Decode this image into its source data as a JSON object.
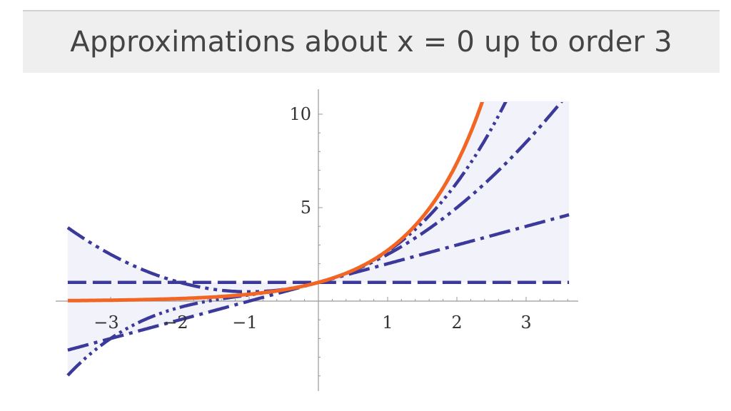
{
  "header": {
    "title": "Approximations about x = 0 up to order 3"
  },
  "chart_data": {
    "type": "line",
    "title": "Approximations about x = 0 up to order 3",
    "xlabel": "",
    "ylabel": "",
    "xlim": [
      -3.7,
      3.7
    ],
    "ylim": [
      -4.5,
      10.5
    ],
    "x_ticks": [
      {
        "value": -3,
        "label": "−3"
      },
      {
        "value": -2,
        "label": "−2"
      },
      {
        "value": -1,
        "label": "−1"
      },
      {
        "value": 1,
        "label": "1"
      },
      {
        "value": 2,
        "label": "2"
      },
      {
        "value": 3,
        "label": "3"
      }
    ],
    "y_ticks": [
      {
        "value": 5,
        "label": "5"
      },
      {
        "value": 10,
        "label": "10"
      }
    ],
    "grid": false,
    "series": [
      {
        "order": 0,
        "coefficients": [
          1
        ],
        "style": "long-dash",
        "color": "#3b3999"
      },
      {
        "order": 1,
        "coefficients": [
          1,
          1
        ],
        "style": "dash-dot",
        "color": "#3b3999"
      },
      {
        "order": 2,
        "coefficients": [
          1,
          1,
          0.5
        ],
        "style": "dash-dot-dot",
        "color": "#3b3999"
      },
      {
        "order": 3,
        "coefficients": [
          1,
          1,
          0.5,
          0.1666667
        ],
        "style": "dash-dot-dot-dot",
        "color": "#3b3999"
      },
      {
        "function": "exp",
        "style": "solid",
        "color": "#f26522"
      }
    ],
    "band_color": "#f2f2fa"
  }
}
